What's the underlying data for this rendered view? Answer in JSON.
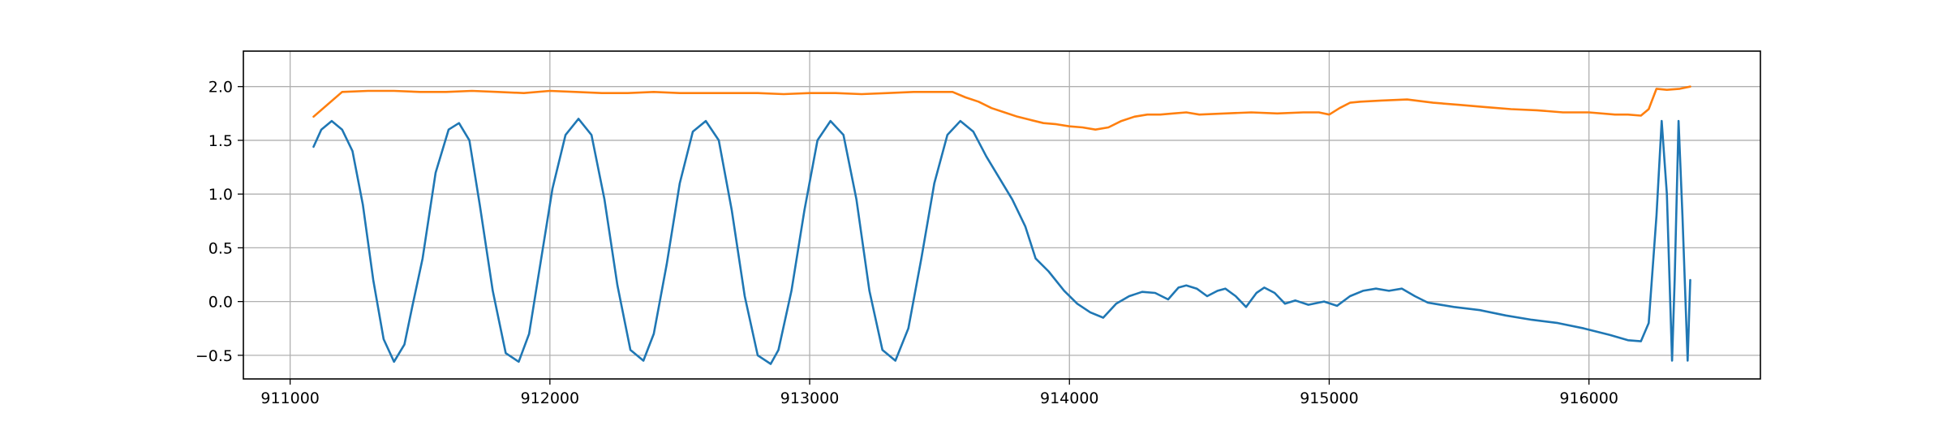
{
  "chart_data": {
    "type": "line",
    "title": "",
    "xlabel": "",
    "ylabel": "",
    "xlim": [
      910820,
      916660
    ],
    "ylim": [
      -0.72,
      2.33
    ],
    "grid": true,
    "legend": "none",
    "x_ticks": [
      {
        "value": 911000,
        "label": "911000"
      },
      {
        "value": 912000,
        "label": "912000"
      },
      {
        "value": 913000,
        "label": "913000"
      },
      {
        "value": 914000,
        "label": "914000"
      },
      {
        "value": 915000,
        "label": "915000"
      },
      {
        "value": 916000,
        "label": "916000"
      }
    ],
    "y_ticks": [
      {
        "value": -0.5,
        "label": "−0.5"
      },
      {
        "value": 0.0,
        "label": "0.0"
      },
      {
        "value": 0.5,
        "label": "0.5"
      },
      {
        "value": 1.0,
        "label": "1.0"
      },
      {
        "value": 1.5,
        "label": "1.5"
      },
      {
        "value": 2.0,
        "label": "2.0"
      }
    ],
    "series": [
      {
        "color": "#1f77b4",
        "x": [
          911090,
          911120,
          911160,
          911200,
          911240,
          911280,
          911320,
          911360,
          911400,
          911440,
          911470,
          911510,
          911560,
          911610,
          911650,
          911690,
          911730,
          911780,
          911830,
          911880,
          911920,
          911960,
          912010,
          912060,
          912110,
          912160,
          912210,
          912260,
          912310,
          912360,
          912400,
          912450,
          912500,
          912550,
          912600,
          912650,
          912700,
          912750,
          912800,
          912850,
          912880,
          912930,
          912980,
          913030,
          913080,
          913130,
          913180,
          913230,
          913280,
          913330,
          913380,
          913430,
          913480,
          913530,
          913580,
          913630,
          913680,
          913730,
          913780,
          913830,
          913870,
          913920,
          913980,
          914030,
          914080,
          914130,
          914180,
          914230,
          914280,
          914330,
          914380,
          914420,
          914450,
          914490,
          914530,
          914570,
          914600,
          914640,
          914680,
          914720,
          914750,
          914790,
          914830,
          914870,
          914920,
          914980,
          915030,
          915080,
          915130,
          915180,
          915230,
          915280,
          915330,
          915380,
          915480,
          915580,
          915680,
          915780,
          915880,
          915980,
          916080,
          916150,
          916200,
          916230,
          916260,
          916280,
          916300,
          916320,
          916330,
          916345,
          916360,
          916380,
          916390
        ],
        "y": [
          1.44,
          1.6,
          1.68,
          1.6,
          1.4,
          0.9,
          0.2,
          -0.35,
          -0.56,
          -0.4,
          -0.05,
          0.4,
          1.2,
          1.6,
          1.66,
          1.5,
          0.9,
          0.1,
          -0.48,
          -0.56,
          -0.3,
          0.3,
          1.05,
          1.55,
          1.7,
          1.55,
          0.95,
          0.15,
          -0.45,
          -0.55,
          -0.3,
          0.35,
          1.1,
          1.58,
          1.68,
          1.5,
          0.85,
          0.05,
          -0.5,
          -0.58,
          -0.45,
          0.1,
          0.85,
          1.5,
          1.68,
          1.55,
          0.95,
          0.1,
          -0.45,
          -0.55,
          -0.25,
          0.4,
          1.1,
          1.55,
          1.68,
          1.58,
          1.35,
          1.15,
          0.95,
          0.7,
          0.4,
          0.28,
          0.1,
          -0.02,
          -0.1,
          -0.15,
          -0.02,
          0.05,
          0.09,
          0.08,
          0.02,
          0.13,
          0.15,
          0.12,
          0.05,
          0.1,
          0.12,
          0.05,
          -0.05,
          0.08,
          0.13,
          0.08,
          -0.02,
          0.01,
          -0.03,
          0.0,
          -0.04,
          0.05,
          0.1,
          0.12,
          0.1,
          0.12,
          0.05,
          -0.01,
          -0.05,
          -0.08,
          -0.13,
          -0.17,
          -0.2,
          -0.25,
          -0.31,
          -0.36,
          -0.37,
          -0.2,
          0.8,
          1.68,
          1.0,
          -0.55,
          0.2,
          1.68,
          0.8,
          -0.55,
          0.2
        ]
      },
      {
        "color": "#ff7f0e",
        "x": [
          911090,
          911200,
          911300,
          911400,
          911500,
          911600,
          911700,
          911800,
          911900,
          912000,
          912100,
          912200,
          912300,
          912400,
          912500,
          912600,
          912700,
          912800,
          912900,
          913000,
          913100,
          913200,
          913300,
          913400,
          913500,
          913550,
          913600,
          913650,
          913700,
          913750,
          913800,
          913850,
          913900,
          913950,
          914000,
          914050,
          914100,
          914150,
          914200,
          914250,
          914300,
          914350,
          914400,
          914450,
          914500,
          914600,
          914700,
          914800,
          914900,
          914960,
          915000,
          915040,
          915080,
          915120,
          915200,
          915300,
          915400,
          915500,
          915600,
          915700,
          915800,
          915900,
          916000,
          916100,
          916150,
          916200,
          916230,
          916260,
          916300,
          916350,
          916390
        ],
        "y": [
          1.72,
          1.95,
          1.96,
          1.96,
          1.95,
          1.95,
          1.96,
          1.95,
          1.94,
          1.96,
          1.95,
          1.94,
          1.94,
          1.95,
          1.94,
          1.94,
          1.94,
          1.94,
          1.93,
          1.94,
          1.94,
          1.93,
          1.94,
          1.95,
          1.95,
          1.95,
          1.9,
          1.86,
          1.8,
          1.76,
          1.72,
          1.69,
          1.66,
          1.65,
          1.63,
          1.62,
          1.6,
          1.62,
          1.68,
          1.72,
          1.74,
          1.74,
          1.75,
          1.76,
          1.74,
          1.75,
          1.76,
          1.75,
          1.76,
          1.76,
          1.74,
          1.8,
          1.85,
          1.86,
          1.87,
          1.88,
          1.85,
          1.83,
          1.81,
          1.79,
          1.78,
          1.76,
          1.76,
          1.74,
          1.74,
          1.73,
          1.79,
          1.98,
          1.97,
          1.98,
          2.0
        ]
      }
    ]
  }
}
